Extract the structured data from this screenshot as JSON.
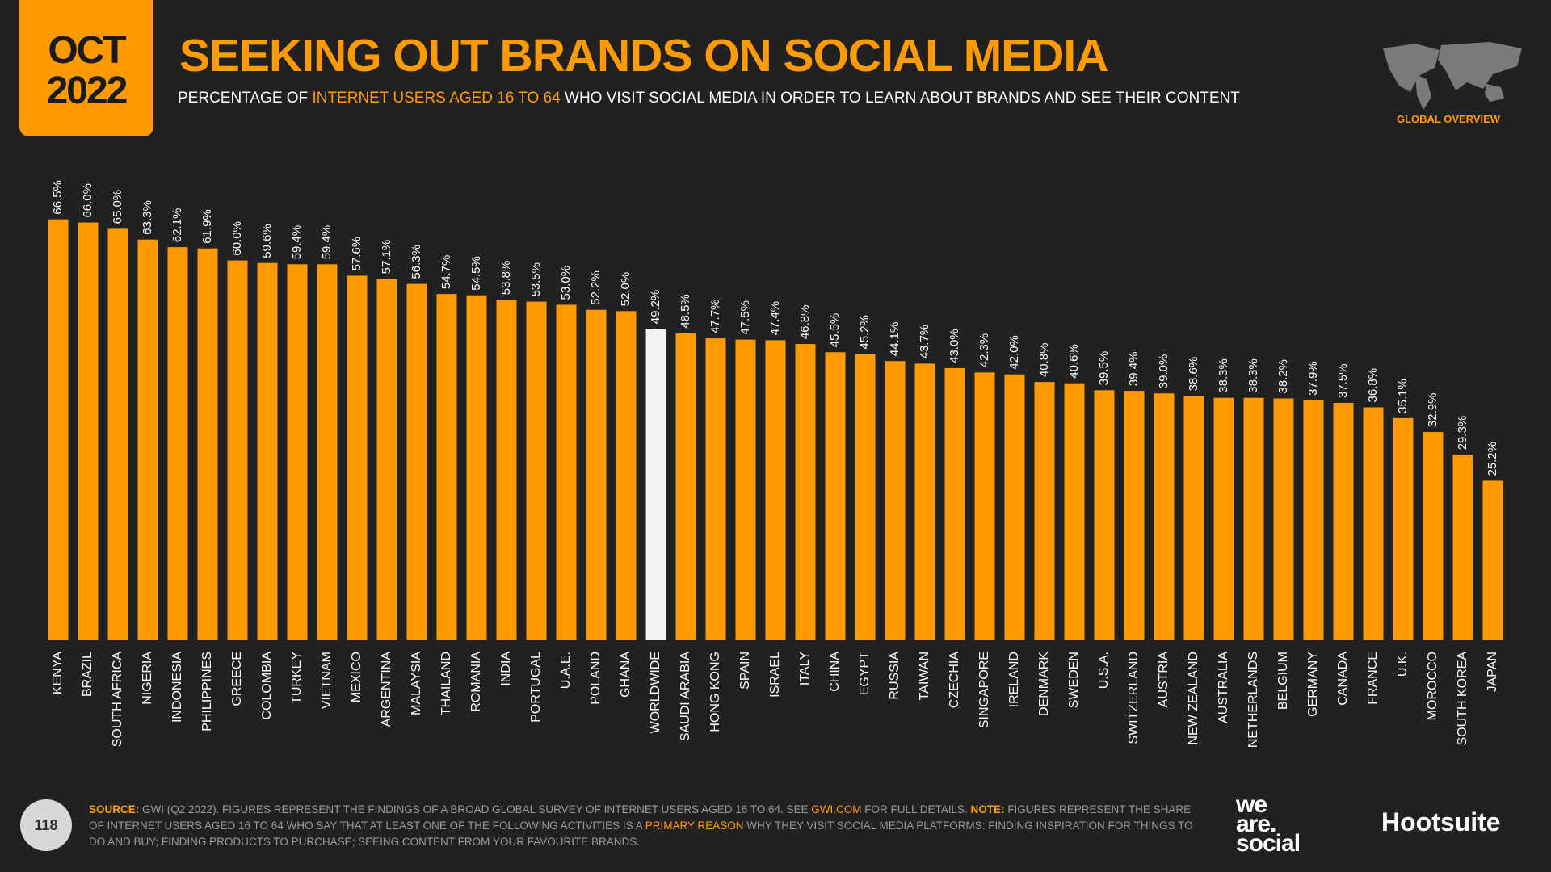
{
  "header": {
    "month": "OCT",
    "year": "2022",
    "region": "GLOBAL OVERVIEW"
  },
  "chart_data": {
    "type": "bar",
    "title": "SEEKING OUT BRANDS ON SOCIAL MEDIA",
    "subtitle": [
      "PERCENTAGE OF ",
      "INTERNET USERS AGED 16 TO 64",
      " WHO VISIT SOCIAL MEDIA IN ORDER TO LEARN ABOUT BRANDS AND SEE THEIR CONTENT"
    ],
    "categories": [
      "KENYA",
      "BRAZIL",
      "SOUTH AFRICA",
      "NIGERIA",
      "INDONESIA",
      "PHILIPPINES",
      "GREECE",
      "COLOMBIA",
      "TURKEY",
      "VIETNAM",
      "MEXICO",
      "ARGENTINA",
      "MALAYSIA",
      "THAILAND",
      "ROMANIA",
      "INDIA",
      "PORTUGAL",
      "U.A.E.",
      "POLAND",
      "GHANA",
      "WORLDWIDE",
      "SAUDI ARABIA",
      "HONG KONG",
      "SPAIN",
      "ISRAEL",
      "ITALY",
      "CHINA",
      "EGYPT",
      "RUSSIA",
      "TAIWAN",
      "CZECHIA",
      "SINGAPORE",
      "IRELAND",
      "DENMARK",
      "SWEDEN",
      "U.S.A.",
      "SWITZERLAND",
      "AUSTRIA",
      "NEW ZEALAND",
      "AUSTRALIA",
      "NETHERLANDS",
      "BELGIUM",
      "GERMANY",
      "CANADA",
      "FRANCE",
      "U.K.",
      "MOROCCO",
      "SOUTH KOREA",
      "JAPAN"
    ],
    "values": [
      66.5,
      66.0,
      65.0,
      63.3,
      62.1,
      61.9,
      60.0,
      59.6,
      59.4,
      59.4,
      57.6,
      57.1,
      56.3,
      54.7,
      54.5,
      53.8,
      53.5,
      53.0,
      52.2,
      52.0,
      49.2,
      48.5,
      47.7,
      47.5,
      47.4,
      46.8,
      45.5,
      45.2,
      44.1,
      43.7,
      43.0,
      42.3,
      42.0,
      40.8,
      40.6,
      39.5,
      39.4,
      39.0,
      38.6,
      38.3,
      38.3,
      38.2,
      37.9,
      37.5,
      36.8,
      35.1,
      32.9,
      29.3,
      25.2
    ],
    "value_labels": [
      "66.5%",
      "66.0%",
      "65.0%",
      "63.3%",
      "62.1%",
      "61.9%",
      "60.0%",
      "59.6%",
      "59.4%",
      "59.4%",
      "57.6%",
      "57.1%",
      "56.3%",
      "54.7%",
      "54.5%",
      "53.8%",
      "53.5%",
      "53.0%",
      "52.2%",
      "52.0%",
      "49.2%",
      "48.5%",
      "47.7%",
      "47.5%",
      "47.4%",
      "46.8%",
      "45.5%",
      "45.2%",
      "44.1%",
      "43.7%",
      "43.0%",
      "42.3%",
      "42.0%",
      "40.8%",
      "40.6%",
      "39.5%",
      "39.4%",
      "39.0%",
      "38.6%",
      "38.3%",
      "38.3%",
      "38.2%",
      "37.9%",
      "37.5%",
      "36.8%",
      "35.1%",
      "32.9%",
      "29.3%",
      "25.2%"
    ],
    "color": "#ff9a00",
    "highlight_category": "WORLDWIDE",
    "highlight_color": "#f2f2f2"
  },
  "footer": {
    "page": "118",
    "source_label": "SOURCE:",
    "source_text": " GWI (Q2 2022). FIGURES REPRESENT THE FINDINGS OF A BROAD GLOBAL SURVEY OF INTERNET USERS AGED 16 TO 64. SEE ",
    "source_link": "GWI.COM",
    "source_tail": " FOR FULL DETAILS. ",
    "note_label": "NOTE:",
    "note_text": " FIGURES REPRESENT THE SHARE OF INTERNET USERS AGED 16 TO 64 WHO SAY THAT AT LEAST ONE OF THE FOLLOWING ACTIVITIES IS A ",
    "note_highlight": "PRIMARY REASON",
    "note_tail": " WHY THEY VISIT SOCIAL MEDIA PLATFORMS: FINDING INSPIRATION FOR THINGS TO DO AND BUY; FINDING PRODUCTS TO PURCHASE; SEEING CONTENT FROM YOUR FAVOURITE BRANDS.",
    "logo_1": [
      "we",
      "are.",
      "social"
    ],
    "logo_2": "Hootsuite"
  }
}
